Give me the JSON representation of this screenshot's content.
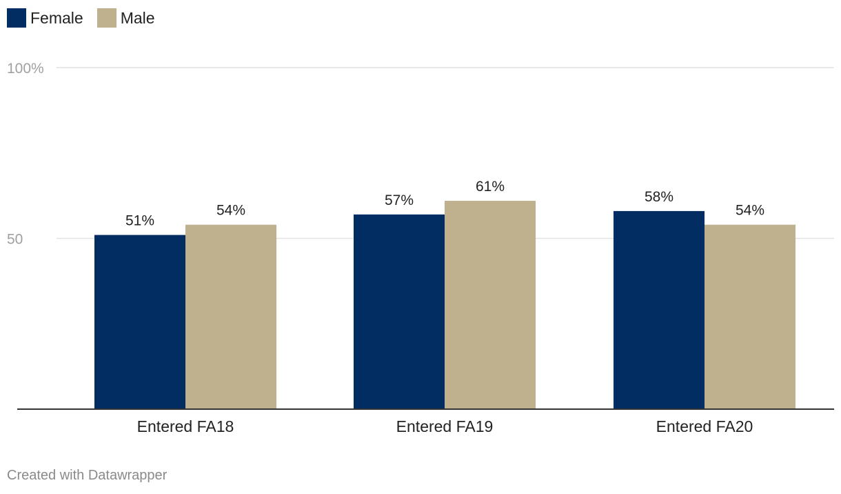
{
  "chart_data": {
    "type": "bar",
    "categories": [
      "Entered FA18",
      "Entered FA19",
      "Entered FA20"
    ],
    "series": [
      {
        "name": "Female",
        "values": [
          51,
          57,
          58
        ],
        "labels": [
          "51%",
          "57%",
          "58%"
        ],
        "color": "#022d62"
      },
      {
        "name": "Male",
        "values": [
          54,
          61,
          54
        ],
        "labels": [
          "54%",
          "61%",
          "54%"
        ],
        "color": "#bfb08e"
      }
    ],
    "ylim": [
      0,
      100
    ],
    "yticks": [
      {
        "value": 50,
        "label": "50"
      },
      {
        "value": 100,
        "label": "100%"
      }
    ],
    "grid": true,
    "legend_position": "top-left",
    "title": "",
    "xlabel": "",
    "ylabel": ""
  },
  "footer": "Created with Datawrapper"
}
